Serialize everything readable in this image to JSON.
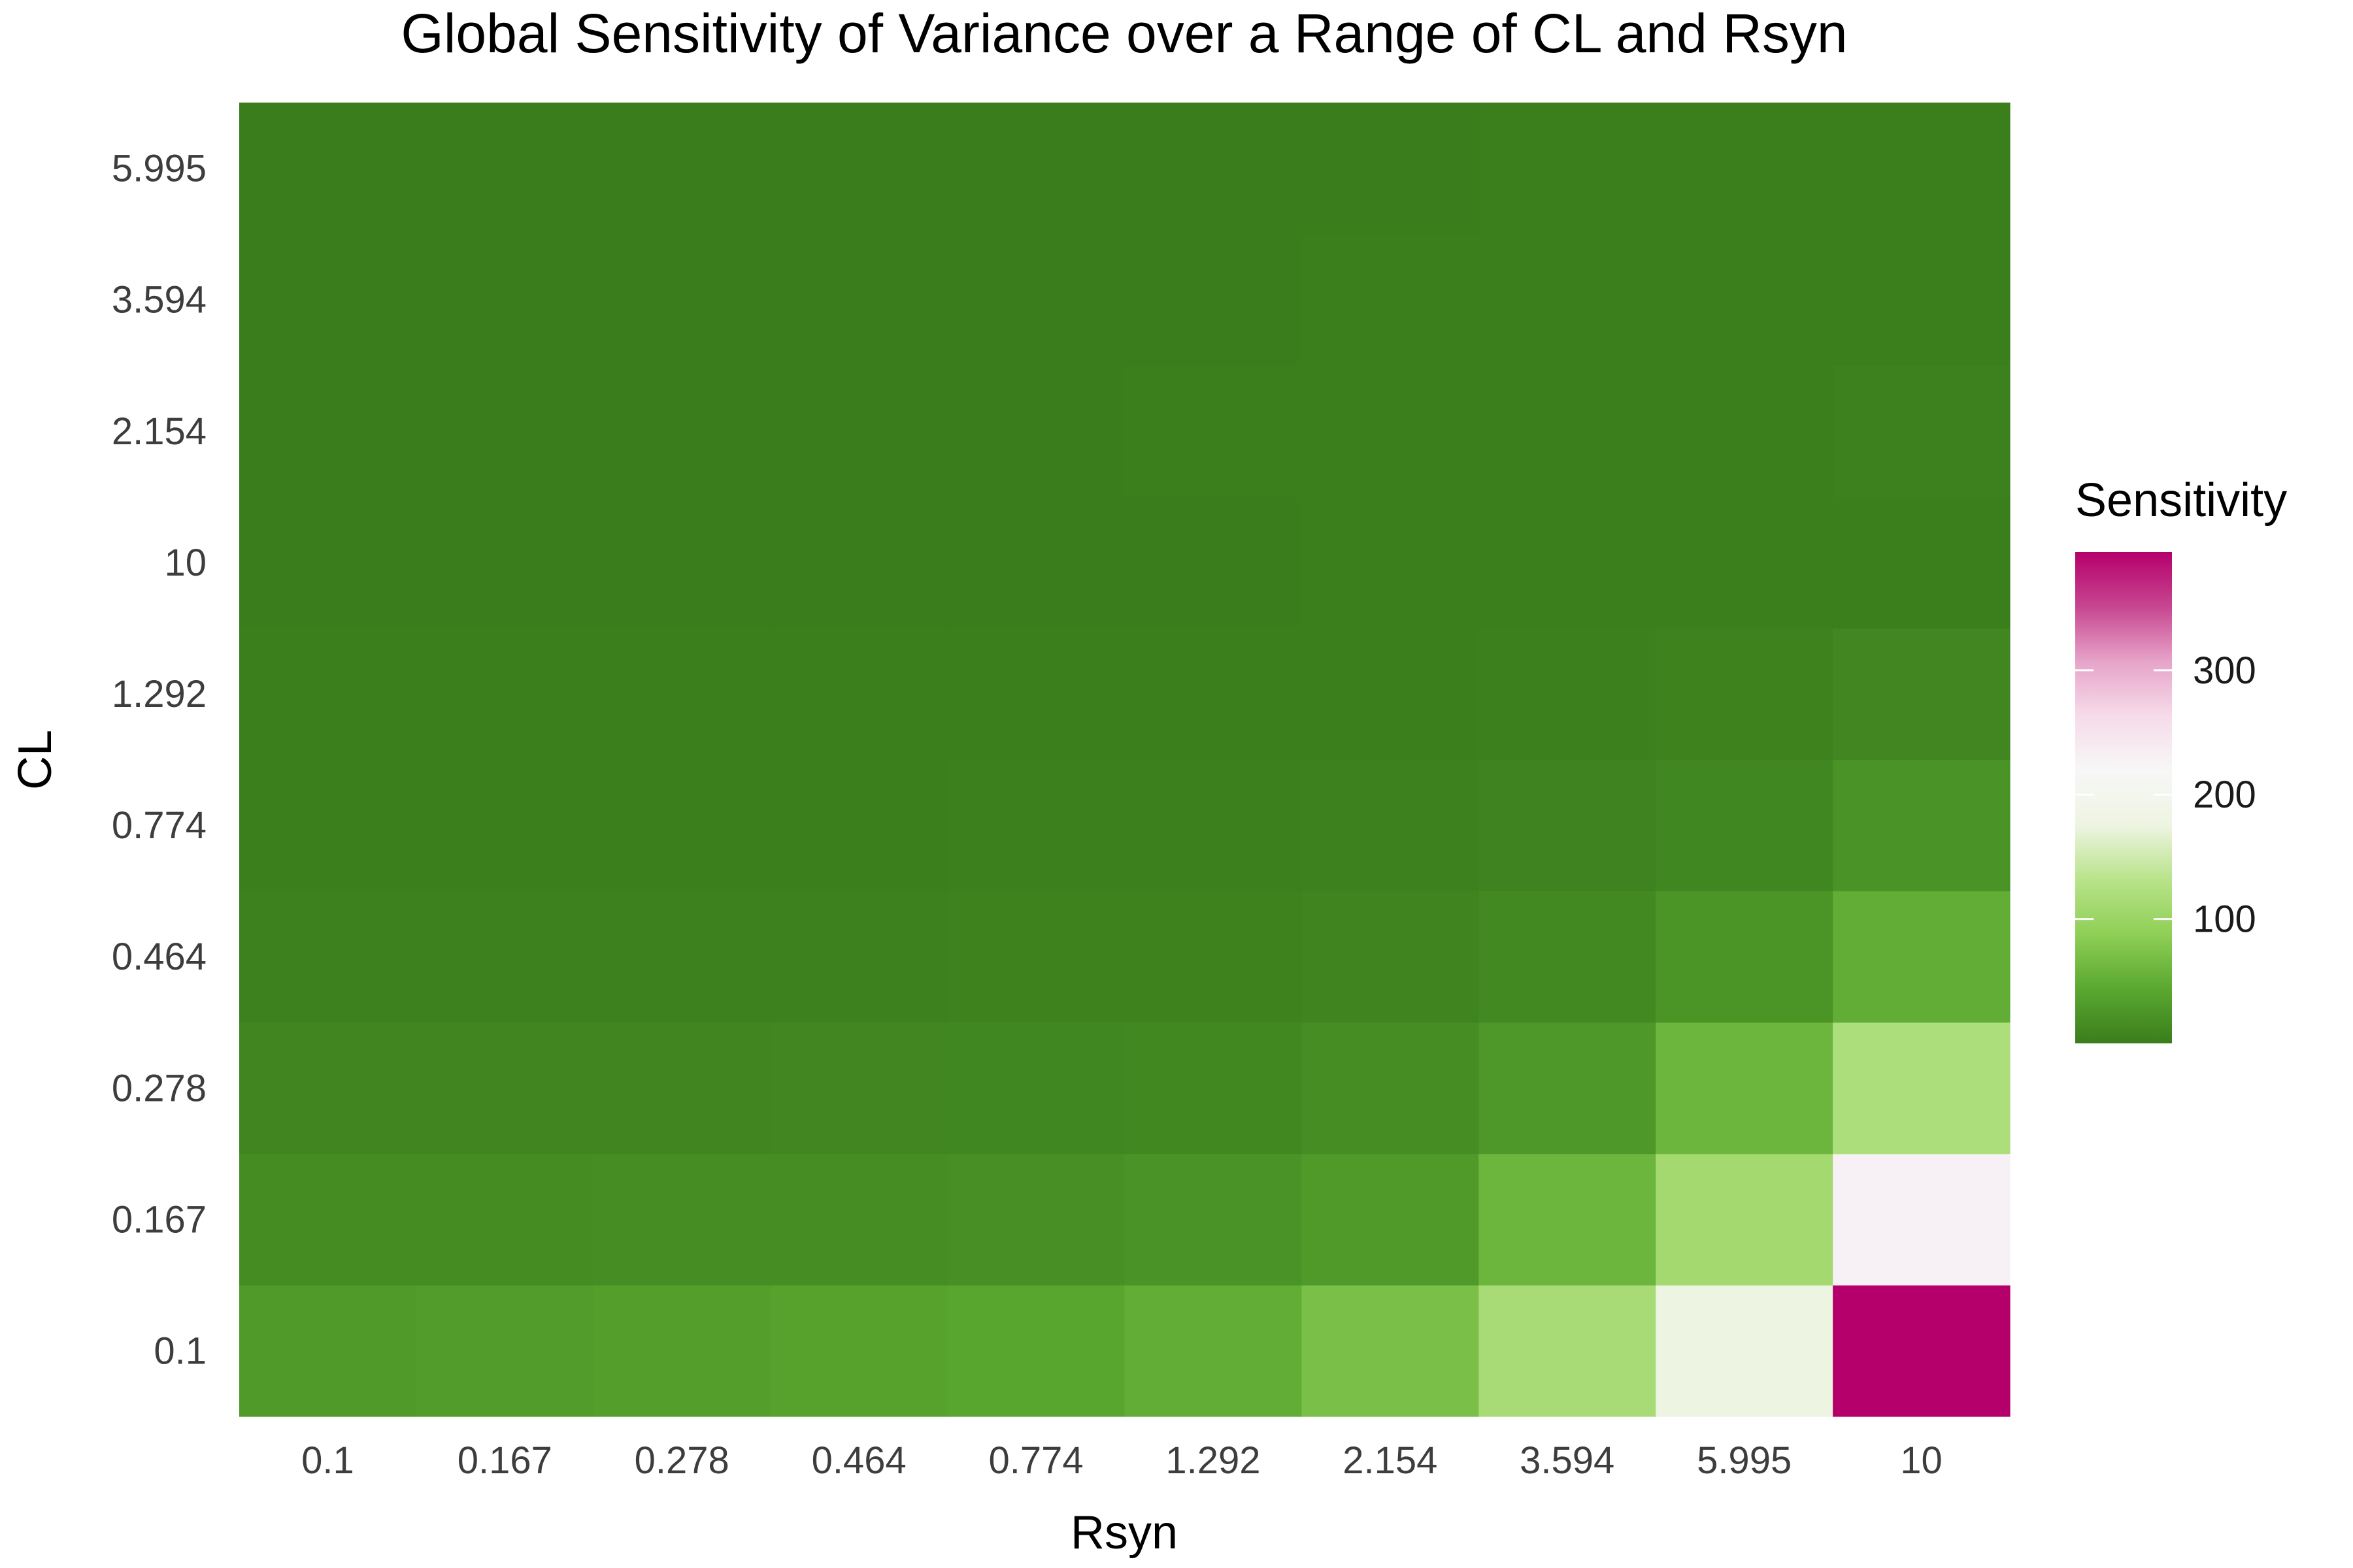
{
  "chart_data": {
    "type": "heatmap",
    "title": "Global Sensitivity of Variance over a Range of CL and Rsyn",
    "xlabel": "Rsyn",
    "ylabel": "CL",
    "x_categories": [
      "0.1",
      "0.167",
      "0.278",
      "0.464",
      "0.774",
      "1.292",
      "2.154",
      "3.594",
      "5.995",
      "10"
    ],
    "y_categories": [
      "0.1",
      "0.167",
      "0.278",
      "0.464",
      "0.774",
      "1.292",
      "10",
      "2.154",
      "3.594",
      "5.995"
    ],
    "values": [
      [
        30,
        32,
        35,
        38,
        42,
        50,
        70,
        115,
        175,
        395
      ],
      [
        15,
        15,
        16,
        17,
        19,
        22,
        30,
        60,
        110,
        230
      ],
      [
        8,
        8,
        8,
        9,
        10,
        11,
        16,
        28,
        60,
        120
      ],
      [
        4,
        4,
        4,
        4,
        5,
        5,
        7,
        12,
        23,
        50
      ],
      [
        2,
        2,
        2,
        2,
        3,
        3,
        4,
        6,
        10,
        22
      ],
      [
        1,
        1,
        1,
        1,
        1,
        2,
        2,
        3,
        5,
        9
      ],
      [
        0,
        0,
        0,
        0,
        0,
        0,
        1,
        1,
        1,
        2
      ],
      [
        0,
        0,
        0,
        0,
        0,
        1,
        1,
        1,
        2,
        4
      ],
      [
        0,
        0,
        0,
        0,
        0,
        0,
        1,
        1,
        1,
        2
      ],
      [
        0,
        0,
        0,
        0,
        0,
        0,
        0,
        1,
        1,
        1
      ]
    ],
    "legend": {
      "title": "Sensitivity",
      "ticks": [
        100,
        200,
        300
      ],
      "range": [
        0,
        395
      ],
      "palette": [
        "#3a7d1c",
        "#5aa830",
        "#8fcf56",
        "#b8e38a",
        "#eef4e2",
        "#f7f7f7",
        "#f6dbe9",
        "#e6a3c9",
        "#c74690",
        "#b5006b"
      ],
      "position": "right"
    },
    "grid": false
  }
}
